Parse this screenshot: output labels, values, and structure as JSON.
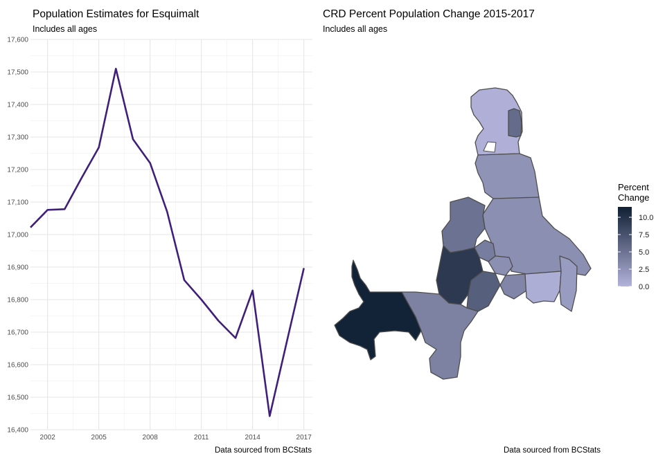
{
  "left": {
    "title": "Population Estimates for Esquimalt",
    "subtitle": "Includes all ages",
    "caption": "Data sourced from BCStats"
  },
  "right": {
    "title": "CRD Percent Population Change 2015-2017",
    "subtitle": "Includes all ages",
    "caption": "Data sourced from BCStats",
    "legend_title_line1": "Percent",
    "legend_title_line2": "Change",
    "legend_ticks": [
      "10.0",
      "7.5",
      "5.0",
      "2.5",
      "0.0"
    ]
  },
  "colors": {
    "line": "#3f1f7a",
    "grid": "#e6e6e6",
    "scale_low": "#b3b3db",
    "scale_high": "#0f1f33",
    "region_border": "#4d4d4d"
  },
  "chart_data": [
    {
      "type": "line",
      "title": "Population Estimates for Esquimalt",
      "subtitle": "Includes all ages",
      "x": [
        2001,
        2002,
        2003,
        2004,
        2005,
        2006,
        2007,
        2008,
        2009,
        2010,
        2011,
        2012,
        2013,
        2014,
        2015,
        2016,
        2017
      ],
      "y": [
        17022,
        17076,
        17078,
        17175,
        17268,
        17510,
        17293,
        17220,
        17070,
        16860,
        16800,
        16735,
        16682,
        16828,
        16442,
        16670,
        16897
      ],
      "xticks": [
        "2002",
        "2005",
        "2008",
        "2011",
        "2014",
        "2017"
      ],
      "yticks": [
        "16,400",
        "16,500",
        "16,600",
        "16,700",
        "16,800",
        "16,900",
        "17,000",
        "17,100",
        "17,200",
        "17,300",
        "17,400",
        "17,500",
        "17,600"
      ],
      "xlim": [
        2001,
        2017.5
      ],
      "ylim": [
        16400,
        17600
      ],
      "grid": true
    },
    {
      "type": "choropleth",
      "title": "CRD Percent Population Change 2015-2017",
      "subtitle": "Includes all ages",
      "legend": "right",
      "scale_range": [
        0,
        11.5
      ],
      "regions": [
        {
          "value": 0.3
        },
        {
          "value": 5.5
        },
        {
          "value": 2.5
        },
        {
          "value": 2.8
        },
        {
          "value": 5.0
        },
        {
          "value": 4.2
        },
        {
          "value": 2.8
        },
        {
          "value": 9.5
        },
        {
          "value": 6.5
        },
        {
          "value": 3.5
        },
        {
          "value": 0.4
        },
        {
          "value": 1.8
        },
        {
          "value": 3.8
        },
        {
          "value": 11.2
        }
      ]
    }
  ]
}
